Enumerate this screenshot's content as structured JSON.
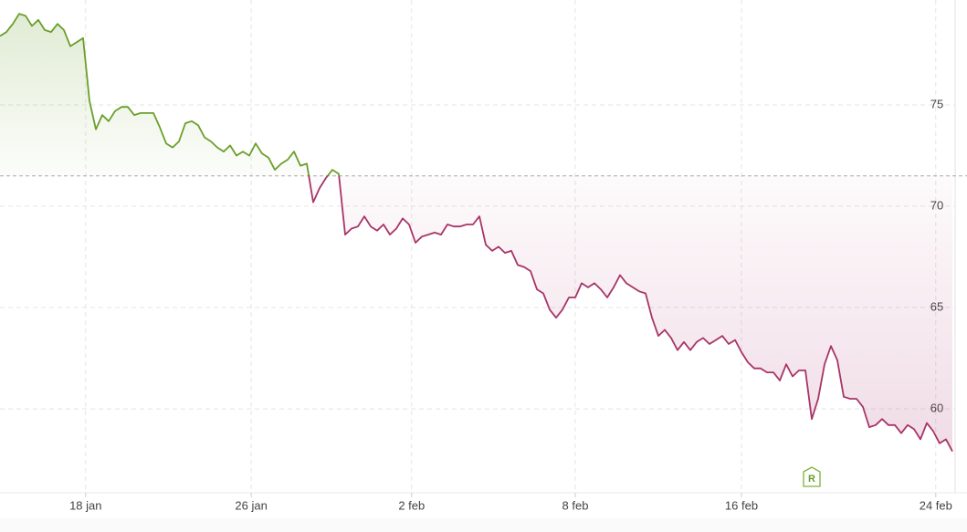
{
  "chart_data": {
    "type": "line",
    "values": [
      78.4,
      78.6,
      79.0,
      79.5,
      79.4,
      78.9,
      79.2,
      78.7,
      78.6,
      79.0,
      78.7,
      77.9,
      78.1,
      78.3,
      75.2,
      73.8,
      74.5,
      74.2,
      74.7,
      74.9,
      74.9,
      74.5,
      74.6,
      74.6,
      74.6,
      73.9,
      73.1,
      72.9,
      73.2,
      74.1,
      74.2,
      74.0,
      73.4,
      73.2,
      72.9,
      72.7,
      73.0,
      72.5,
      72.7,
      72.5,
      73.1,
      72.6,
      72.4,
      71.8,
      72.1,
      72.3,
      72.7,
      72.0,
      72.1,
      70.2,
      70.9,
      71.4,
      71.8,
      71.6,
      68.6,
      68.9,
      69.0,
      69.5,
      69.0,
      68.8,
      69.1,
      68.6,
      68.9,
      69.4,
      69.1,
      68.2,
      68.5,
      68.6,
      68.7,
      68.6,
      69.1,
      69.0,
      69.0,
      69.1,
      69.1,
      69.5,
      68.1,
      67.8,
      68.0,
      67.7,
      67.8,
      67.1,
      67.0,
      66.8,
      65.9,
      65.7,
      64.9,
      64.5,
      64.9,
      65.5,
      65.5,
      66.2,
      66.0,
      66.2,
      65.9,
      65.5,
      66.0,
      66.6,
      66.2,
      66.0,
      65.8,
      65.7,
      64.5,
      63.6,
      63.9,
      63.5,
      62.9,
      63.3,
      62.9,
      63.3,
      63.5,
      63.2,
      63.4,
      63.6,
      63.2,
      63.4,
      62.8,
      62.3,
      62.0,
      62.0,
      61.8,
      61.8,
      61.4,
      62.2,
      61.6,
      61.9,
      61.9,
      59.5,
      60.5,
      62.2,
      63.1,
      62.4,
      60.6,
      60.5,
      60.5,
      60.1,
      59.1,
      59.2,
      59.5,
      59.2,
      59.2,
      58.8,
      59.2,
      59.0,
      58.5,
      59.3,
      58.9,
      58.3,
      58.5,
      57.9
    ],
    "baseline": 71.5,
    "above_color": "#6a9e2a",
    "below_color": "#a83468",
    "xlim": [
      0,
      149
    ],
    "xticks": [
      {
        "value": 13.4,
        "label": "18 jan"
      },
      {
        "value": 39.3,
        "label": "26 jan"
      },
      {
        "value": 64.4,
        "label": "2 feb"
      },
      {
        "value": 90,
        "label": "8 feb"
      },
      {
        "value": 116,
        "label": "16 feb"
      },
      {
        "value": 146.4,
        "label": "24 feb"
      }
    ],
    "ylim": [
      55.86,
      80.18
    ],
    "yticks": [
      60,
      65,
      70,
      75
    ],
    "grid": true,
    "marker": {
      "x": 127,
      "label": "R"
    }
  }
}
